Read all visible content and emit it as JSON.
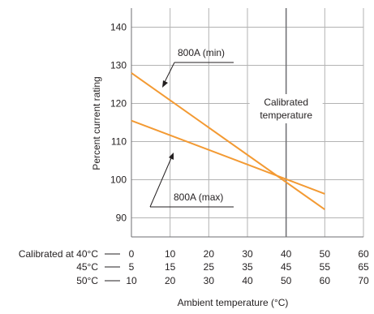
{
  "chart_data": {
    "type": "line",
    "xlabel": "Ambient temperature (°C)",
    "ylabel": "Percent current rating",
    "xlim": [
      0,
      60
    ],
    "ylim": [
      85,
      145
    ],
    "x_ticks": [
      0,
      10,
      20,
      30,
      40,
      50,
      60
    ],
    "y_ticks": [
      90,
      100,
      110,
      120,
      130,
      140
    ],
    "grid": true,
    "extra_x_scales": [
      {
        "label": "Calibrated at 40°C",
        "ticks": [
          "0",
          "10",
          "20",
          "30",
          "40",
          "50",
          "60"
        ]
      },
      {
        "label": "45°C",
        "ticks": [
          "5",
          "15",
          "25",
          "35",
          "45",
          "55",
          "65"
        ]
      },
      {
        "label": "50°C",
        "ticks": [
          "10",
          "20",
          "30",
          "40",
          "50",
          "60",
          "70"
        ]
      }
    ],
    "series": [
      {
        "name": "800A (min)",
        "color": "#f39a33",
        "x": [
          0,
          50
        ],
        "y": [
          128,
          92.2
        ]
      },
      {
        "name": "800A (max)",
        "color": "#f39a33",
        "x": [
          0,
          50
        ],
        "y": [
          115.5,
          96.3
        ]
      }
    ],
    "annotations": [
      {
        "text": "800A (min)"
      },
      {
        "text": "800A (max)"
      },
      {
        "text": "Calibrated\ntemperature",
        "lines": [
          "Calibrated",
          "temperature"
        ]
      }
    ],
    "reference_line": {
      "x": 40
    }
  }
}
